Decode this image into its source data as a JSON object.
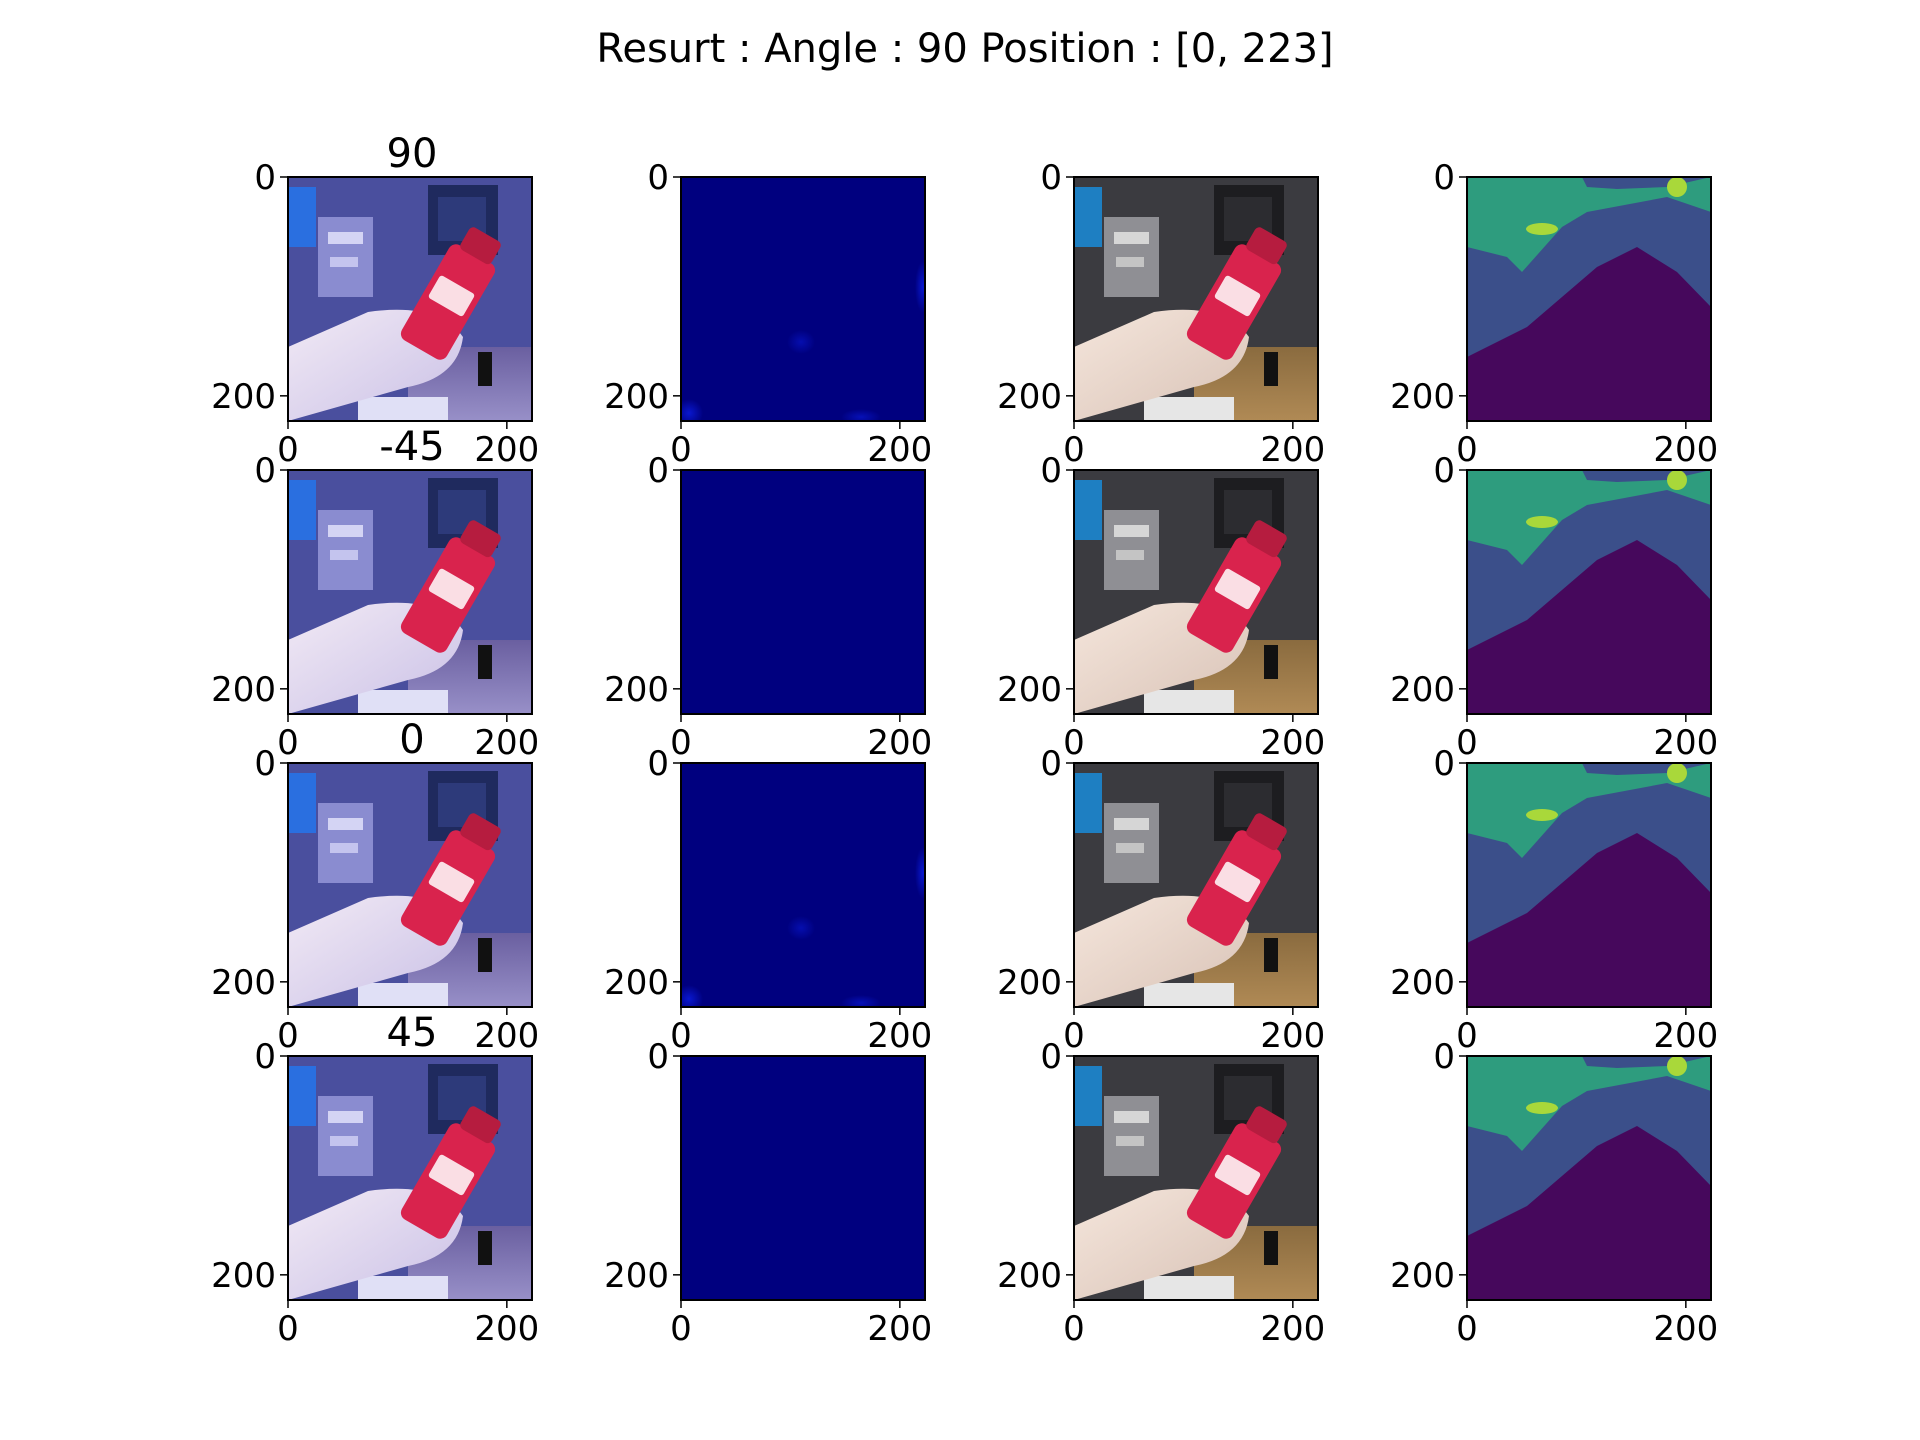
{
  "figure": {
    "title": "Resurt : Angle : 90 Position : [0, 223]"
  },
  "chart_data": {
    "type": "image-grid",
    "rows": 4,
    "cols": 4,
    "row_titles": [
      "90",
      "-45",
      "0",
      "45"
    ],
    "panel_kinds": [
      "rgb-frame",
      "heatmap-jet",
      "rgb-frame-natural",
      "depth-viridis"
    ],
    "image_size": [
      224,
      224
    ],
    "xlim": [
      0,
      223
    ],
    "ylim": [
      0,
      223
    ],
    "x_ticks": [
      0,
      200
    ],
    "y_ticks": [
      0,
      200
    ],
    "x_tick_labels": [
      "0",
      "200"
    ],
    "y_tick_labels": [
      "0",
      "200"
    ],
    "colors": {
      "jet_background": "#00007f",
      "jet_hot": "#0a1ad8",
      "viridis_dark": "#46085c",
      "viridis_mid": "#3b4f8a",
      "viridis_light": "#2e9c7e",
      "viridis_bright": "#a9d83a",
      "bottle_red": "#d9234d"
    }
  }
}
